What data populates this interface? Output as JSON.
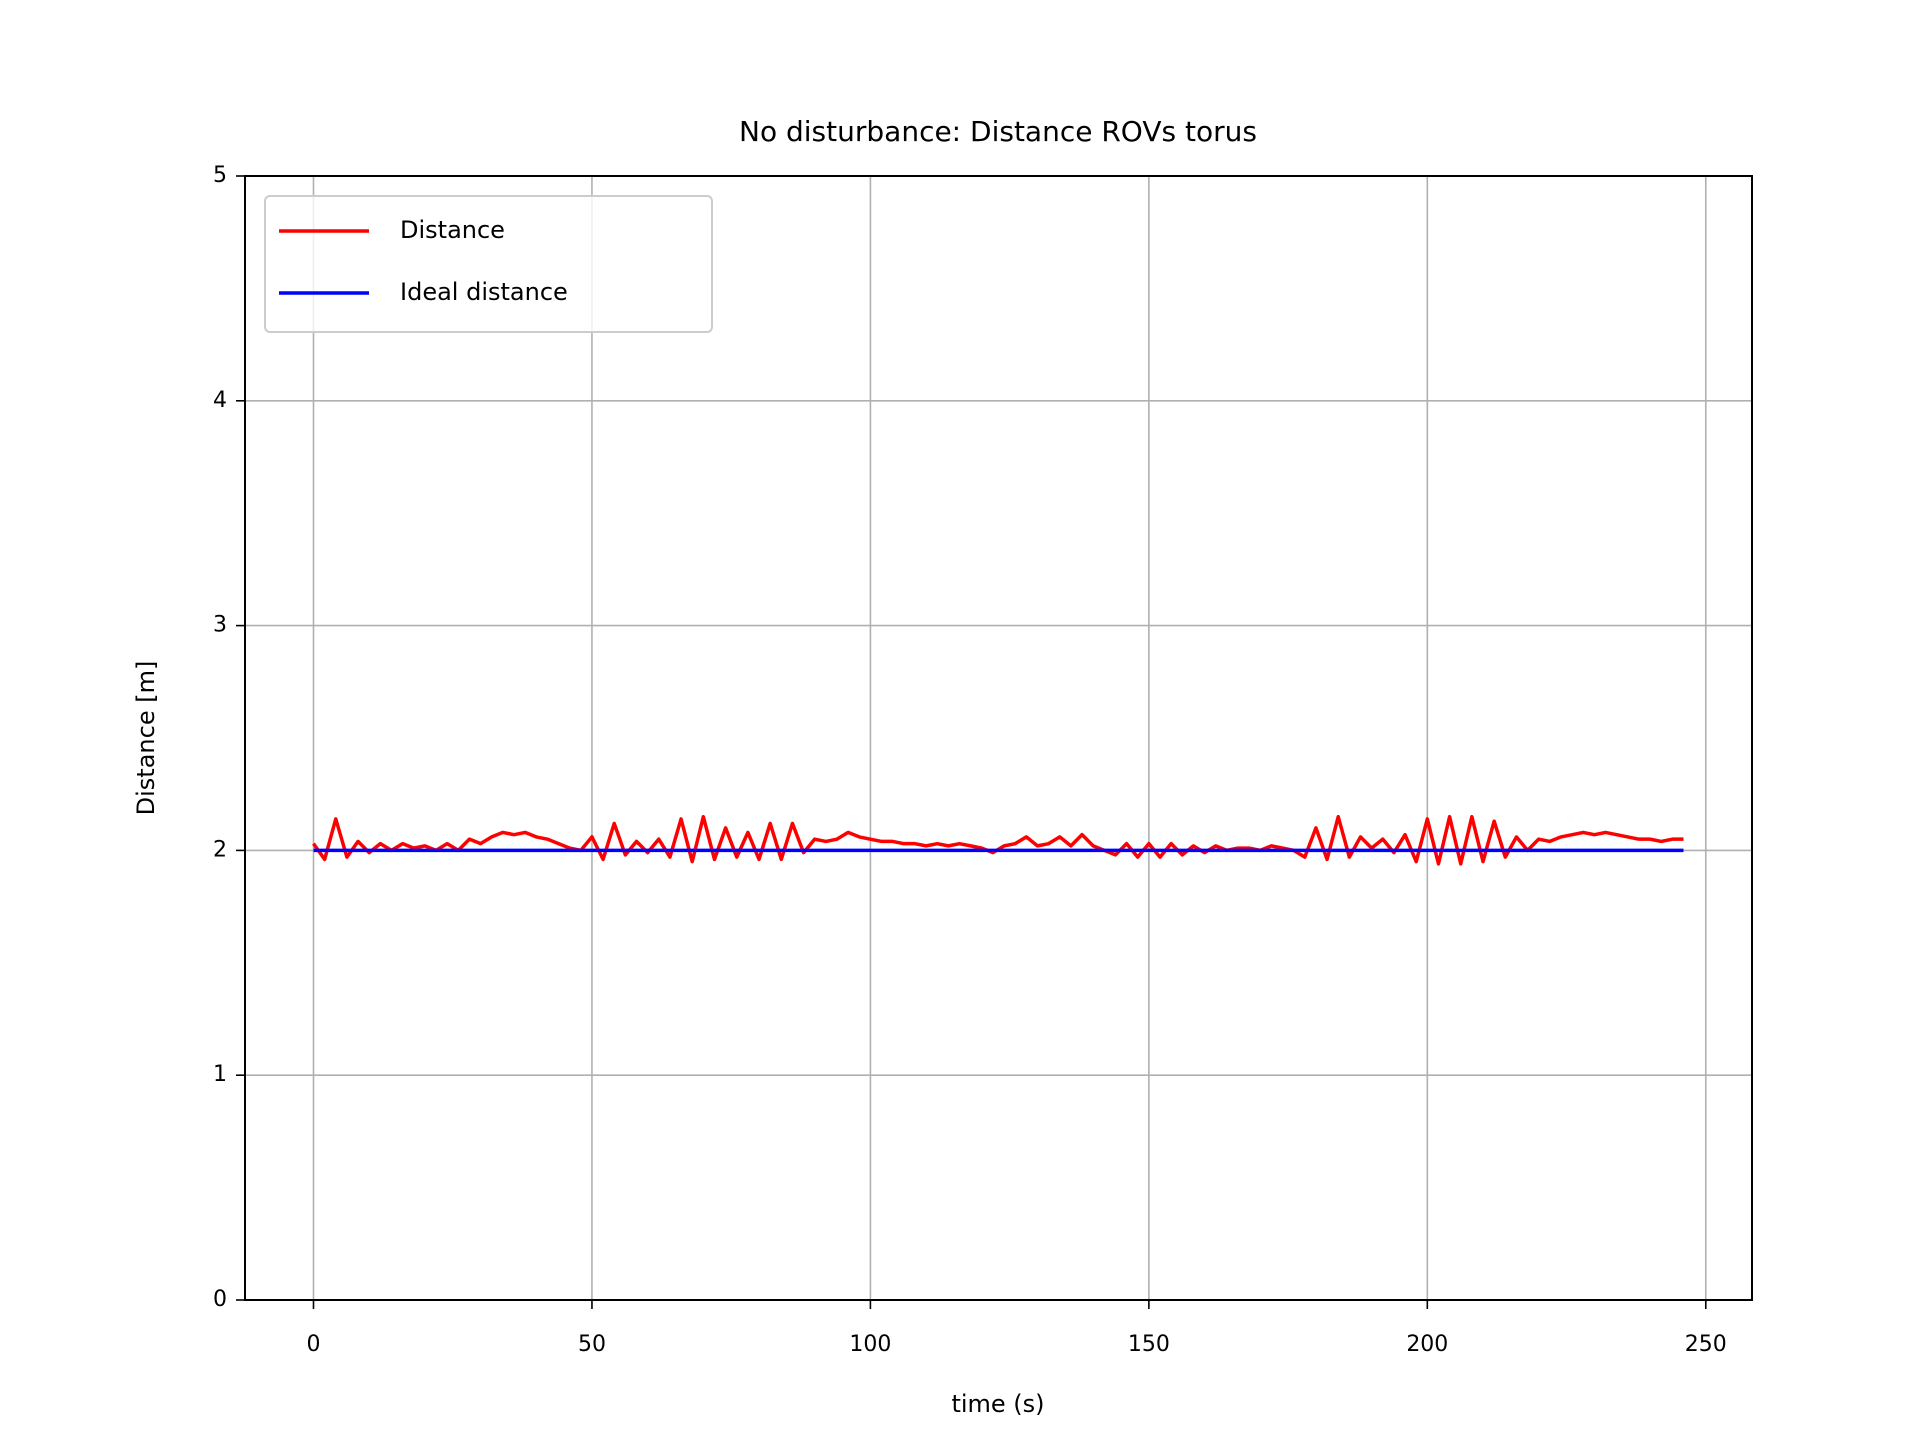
{
  "chart_data": {
    "type": "line",
    "title": "No disturbance: Distance ROVs torus",
    "xlabel": "time (s)",
    "ylabel": "Distance [m]",
    "xlim": [
      -12.3,
      258.3
    ],
    "ylim": [
      0,
      5
    ],
    "xticks": [
      0,
      50,
      100,
      150,
      200,
      250
    ],
    "yticks": [
      0,
      1,
      2,
      3,
      4,
      5
    ],
    "grid": true,
    "legend": "upper left",
    "series": [
      {
        "name": "Distance",
        "color": "#ff0000",
        "x": [
          0,
          2,
          4,
          6,
          8,
          10,
          12,
          14,
          16,
          18,
          20,
          22,
          24,
          26,
          28,
          30,
          32,
          34,
          36,
          38,
          40,
          42,
          44,
          46,
          48,
          50,
          52,
          54,
          56,
          58,
          60,
          62,
          64,
          66,
          68,
          70,
          72,
          74,
          76,
          78,
          80,
          82,
          84,
          86,
          88,
          90,
          92,
          94,
          96,
          98,
          100,
          102,
          104,
          106,
          108,
          110,
          112,
          114,
          116,
          118,
          120,
          122,
          124,
          126,
          128,
          130,
          132,
          134,
          136,
          138,
          140,
          142,
          144,
          146,
          148,
          150,
          152,
          154,
          156,
          158,
          160,
          162,
          164,
          166,
          168,
          170,
          172,
          174,
          176,
          178,
          180,
          182,
          184,
          186,
          188,
          190,
          192,
          194,
          196,
          198,
          200,
          202,
          204,
          206,
          208,
          210,
          212,
          214,
          216,
          218,
          220,
          222,
          224,
          226,
          228,
          230,
          232,
          234,
          236,
          238,
          240,
          242,
          244,
          246
        ],
        "values": [
          2.03,
          1.96,
          2.14,
          1.97,
          2.04,
          1.99,
          2.03,
          2.0,
          2.03,
          2.01,
          2.02,
          2.0,
          2.03,
          2.0,
          2.05,
          2.03,
          2.06,
          2.08,
          2.07,
          2.08,
          2.06,
          2.05,
          2.03,
          2.01,
          2.0,
          2.06,
          1.96,
          2.12,
          1.98,
          2.04,
          1.99,
          2.05,
          1.97,
          2.14,
          1.95,
          2.15,
          1.96,
          2.1,
          1.97,
          2.08,
          1.96,
          2.12,
          1.96,
          2.12,
          1.99,
          2.05,
          2.04,
          2.05,
          2.08,
          2.06,
          2.05,
          2.04,
          2.04,
          2.03,
          2.03,
          2.02,
          2.03,
          2.02,
          2.03,
          2.02,
          2.01,
          1.99,
          2.02,
          2.03,
          2.06,
          2.02,
          2.03,
          2.06,
          2.02,
          2.07,
          2.02,
          2.0,
          1.98,
          2.03,
          1.97,
          2.03,
          1.97,
          2.03,
          1.98,
          2.02,
          1.99,
          2.02,
          2.0,
          2.01,
          2.01,
          2.0,
          2.02,
          2.01,
          2.0,
          1.97,
          2.1,
          1.96,
          2.15,
          1.97,
          2.06,
          2.01,
          2.05,
          1.99,
          2.07,
          1.95,
          2.14,
          1.94,
          2.15,
          1.94,
          2.15,
          1.95,
          2.13,
          1.97,
          2.06,
          2.0,
          2.05,
          2.04,
          2.06,
          2.07,
          2.08,
          2.07,
          2.08,
          2.07,
          2.06,
          2.05,
          2.05,
          2.04,
          2.05,
          2.05
        ]
      },
      {
        "name": "Ideal distance",
        "color": "#0000ff",
        "x": [
          0,
          246
        ],
        "values": [
          2,
          2
        ]
      }
    ]
  }
}
